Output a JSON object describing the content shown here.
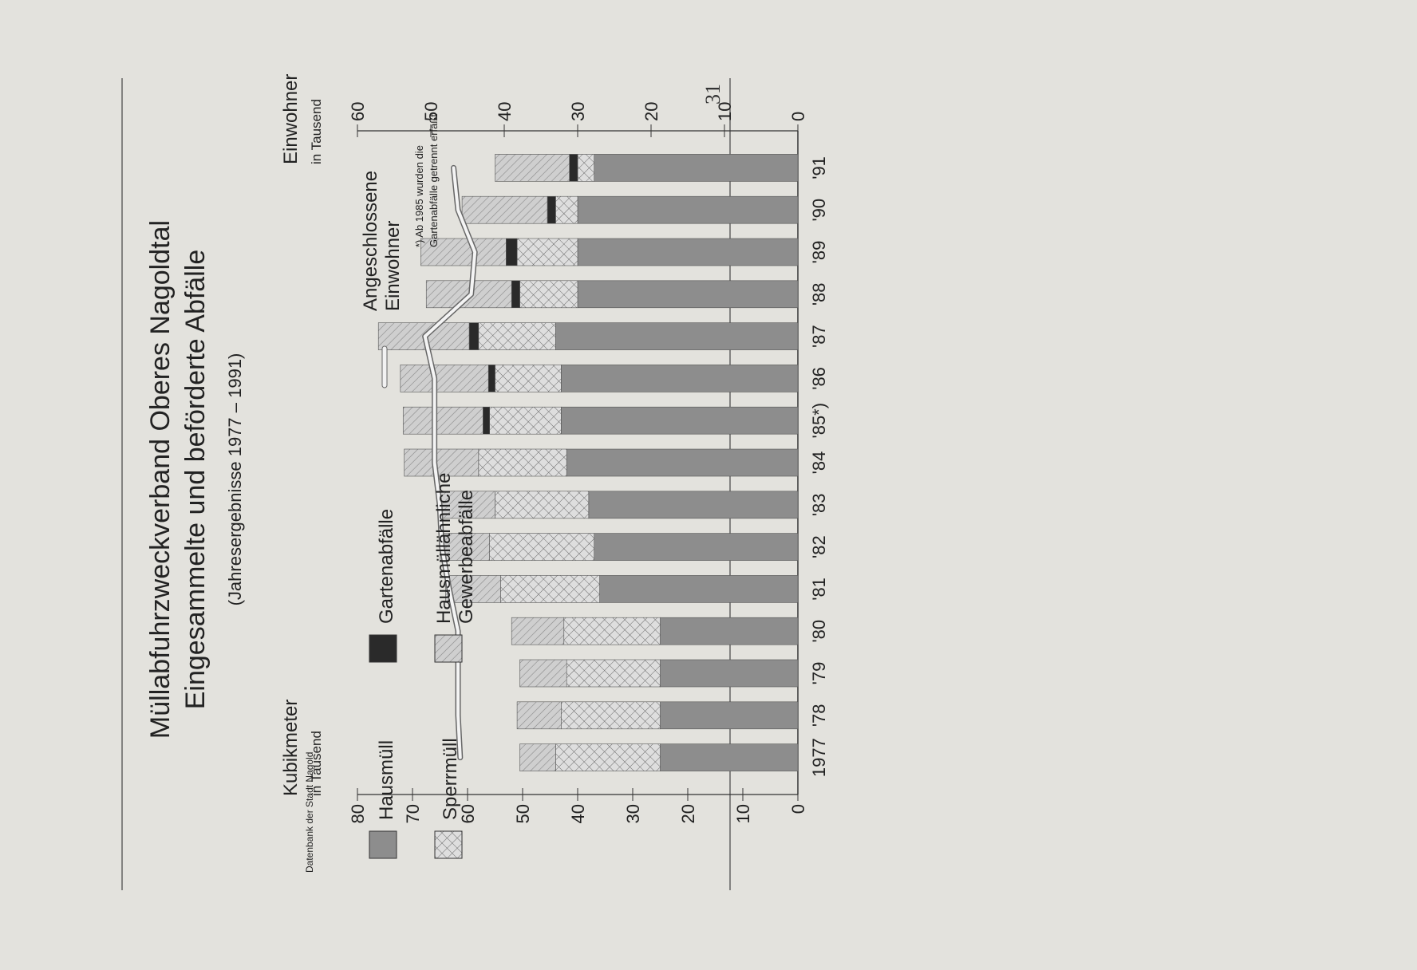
{
  "page_number": "31",
  "chart_data": {
    "type": "bar",
    "title": "Müllabfuhrzweckverband Oberes Nagoldtal",
    "subtitle": "Eingesammelte und beförderte Abfälle",
    "subtitle2": "(Jahresergebnisse 1977 – 1991)",
    "left_axis": {
      "label": "Kubikmeter",
      "unit": "in Tausend",
      "range": [
        0,
        80
      ],
      "ticks": [
        "0",
        "10",
        "20",
        "30",
        "40",
        "50",
        "60",
        "70",
        "80"
      ]
    },
    "right_axis": {
      "label": "Einwohner",
      "unit": "in Tausend",
      "range": [
        0,
        60
      ],
      "ticks": [
        "0",
        "10",
        "20",
        "30",
        "40",
        "50",
        "60"
      ]
    },
    "categories": [
      "1977",
      "'78",
      "'79",
      "'80",
      "'81",
      "'82",
      "'83",
      "'84",
      "'85*)",
      "'86",
      "'87",
      "'88",
      "'89",
      "'90",
      "'91"
    ],
    "series": [
      {
        "name": "Hausmüll",
        "color": "#8d8d8d",
        "pattern": "solid",
        "values": [
          25,
          25,
          25,
          25,
          36,
          37,
          38,
          42,
          43,
          43,
          44,
          40,
          40,
          40,
          37
        ]
      },
      {
        "name": "Sperrmüll",
        "color": "#d9d9d9",
        "pattern": "crosshatch",
        "values": [
          19,
          18,
          17,
          17.5,
          18,
          19,
          17,
          16,
          13,
          12,
          14,
          10.5,
          11,
          4,
          3
        ]
      },
      {
        "name": "Gartenabfälle",
        "color": "#2a2a2a",
        "pattern": "solid",
        "values": [
          0,
          0,
          0,
          0,
          0,
          0,
          0,
          0,
          1.2,
          1.2,
          1.7,
          1.5,
          2,
          1.5,
          1.5
        ]
      },
      {
        "name": "Hausmülläh­nliche Gewerbeabfälle",
        "label_line1": "Hausmüllähnliche",
        "label_line2": "Gewerbeabfälle",
        "color": "#c8c8c8",
        "pattern": "diagonal",
        "values": [
          6.5,
          8,
          8.5,
          9.5,
          10,
          9,
          10,
          13.5,
          14.5,
          16,
          16.5,
          15.5,
          15.5,
          15.5,
          13.5
        ]
      }
    ],
    "line_series": {
      "name": "Angeschlossene Einwohner",
      "label_line1": "Angeschlossene",
      "label_line2": "Einwohner",
      "axis": "right",
      "values": [
        46,
        46.3,
        46.3,
        46.3,
        47.5,
        48.5,
        48.8,
        49.5,
        49.5,
        49.5,
        50.8,
        44.5,
        44,
        46.3,
        46.9
      ]
    },
    "footnote_line1": "*) Ab 1985 wurden die",
    "footnote_line2": "Gartenabfälle getrennt erfaßt",
    "source": "Datenbank der Stadt Nagold"
  }
}
